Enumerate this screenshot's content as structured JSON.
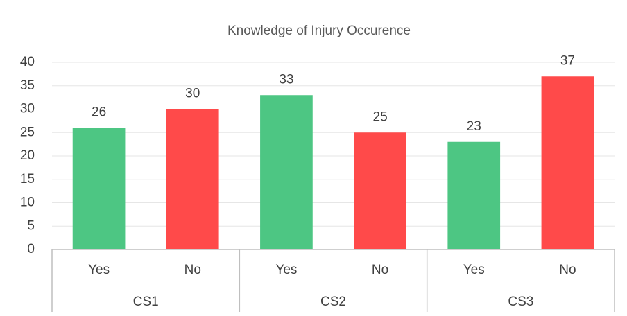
{
  "chart_data": {
    "type": "bar",
    "title": "Knowledge of Injury Occurence",
    "categories": [
      "Yes",
      "No",
      "Yes",
      "No",
      "Yes",
      "No"
    ],
    "groups": [
      "CS1",
      "CS2",
      "CS3"
    ],
    "values": [
      26,
      30,
      33,
      25,
      23,
      37
    ],
    "colors": [
      "#4dc683",
      "#ff4a4a",
      "#4dc683",
      "#ff4a4a",
      "#4dc683",
      "#ff4a4a"
    ],
    "ylim": [
      0,
      40
    ],
    "yticks": [
      0,
      5,
      10,
      15,
      20,
      25,
      30,
      35,
      40
    ],
    "grid": true
  }
}
